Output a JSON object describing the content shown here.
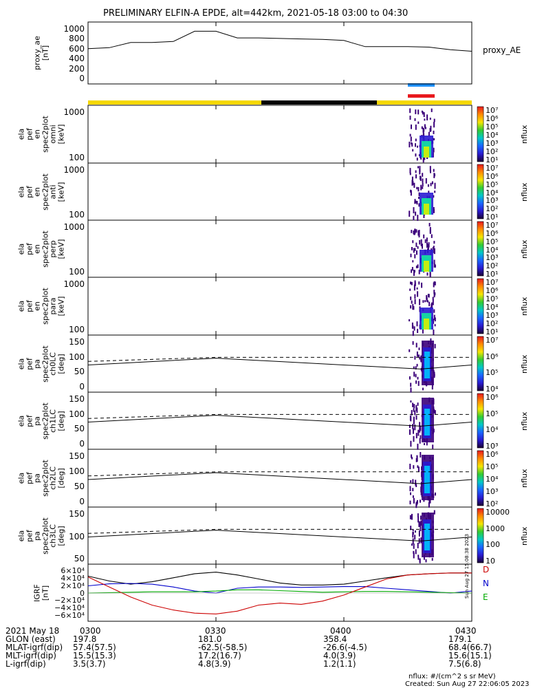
{
  "title": "PRELIMINARY ELFIN-A EPDE, alt=442km, 2021-05-18 03:00 to 04:30",
  "proxy_ae_legend": "proxy_AE",
  "colors": {
    "yellow": "#f5d800",
    "blue_bar": "#1e90ff",
    "red_bar": "#e8191e",
    "bx": "#0000cc",
    "by": "#00aa00",
    "bz": "#cc0000"
  },
  "time_ticks": [
    "0300",
    "0330",
    "0400",
    "0430"
  ],
  "panels": [
    {
      "id": "proxy_ae",
      "ylabel": [
        "proxy_ae",
        "[nT]"
      ],
      "yticks": [
        "1000",
        "800",
        "600",
        "400",
        "200",
        "0"
      ]
    },
    {
      "id": "en_omni",
      "ylabel": [
        "ela",
        "pef",
        "en",
        "spec2plot",
        "omni",
        "[keV]"
      ],
      "yticks": [
        "1000",
        "100"
      ],
      "cbar_ticks": [
        "10⁷",
        "10⁶",
        "10⁵",
        "10⁴",
        "10³",
        "10²",
        "10¹"
      ],
      "cbar_label": "nflux"
    },
    {
      "id": "en_anti",
      "ylabel": [
        "ela",
        "pef",
        "en",
        "spec2plot",
        "anti",
        "[keV]"
      ],
      "yticks": [
        "1000",
        "100"
      ],
      "cbar_ticks": [
        "10⁷",
        "10⁶",
        "10⁵",
        "10⁴",
        "10³",
        "10²",
        "10¹"
      ],
      "cbar_label": "nflux"
    },
    {
      "id": "en_perp",
      "ylabel": [
        "ela",
        "pef",
        "en",
        "spec2plot",
        "perp",
        "[keV]"
      ],
      "yticks": [
        "1000",
        "100"
      ],
      "cbar_ticks": [
        "10⁷",
        "10⁶",
        "10⁵",
        "10⁴",
        "10³",
        "10²",
        "10¹"
      ],
      "cbar_label": "nflux"
    },
    {
      "id": "en_para",
      "ylabel": [
        "ela",
        "pef",
        "en",
        "spec2plot",
        "para",
        "[keV]"
      ],
      "yticks": [
        "1000",
        "100"
      ],
      "cbar_ticks": [
        "10⁷",
        "10⁶",
        "10⁵",
        "10⁴",
        "10³",
        "10²",
        "10¹"
      ],
      "cbar_label": "nflux"
    },
    {
      "id": "pa_ch0",
      "ylabel": [
        "ela",
        "pef",
        "pa",
        "spec2plot",
        "ch0LC",
        "[deg]"
      ],
      "yticks": [
        "150",
        "100",
        "50",
        "0"
      ],
      "cbar_ticks": [
        "10⁷",
        "10⁶",
        "10⁵",
        "10⁴"
      ],
      "cbar_label": "nflux"
    },
    {
      "id": "pa_ch1",
      "ylabel": [
        "ela",
        "pef",
        "pa",
        "spec2plot",
        "ch1LC",
        "[deg]"
      ],
      "yticks": [
        "150",
        "100",
        "50",
        "0"
      ],
      "cbar_ticks": [
        "10⁶",
        "10⁵",
        "10⁴",
        "10³"
      ],
      "cbar_label": "nflux"
    },
    {
      "id": "pa_ch2",
      "ylabel": [
        "ela",
        "pef",
        "pa",
        "spec2plot",
        "ch2LC",
        "[deg]"
      ],
      "yticks": [
        "150",
        "100",
        "50",
        "0"
      ],
      "cbar_ticks": [
        "10⁶",
        "10⁵",
        "10⁴",
        "10³",
        "10²"
      ],
      "cbar_label": "nflux"
    },
    {
      "id": "pa_ch3",
      "ylabel": [
        "ela",
        "pef",
        "pa",
        "spec2plot",
        "ch3LC",
        "[deg]"
      ],
      "yticks": [
        "150",
        "100",
        "50"
      ],
      "cbar_ticks": [
        "10000",
        "1000",
        "100",
        "10"
      ],
      "cbar_label": "nflux"
    },
    {
      "id": "igrf",
      "ylabel": [
        "IGRF",
        "[nT]"
      ],
      "yticks": [
        "6×10⁴",
        "4×10⁴",
        "2×10⁴",
        "0",
        "−2×10⁴",
        "−4×10⁴",
        "−6×10⁴"
      ],
      "legend": [
        "D",
        "N",
        "E"
      ]
    }
  ],
  "chart_data": {
    "type": "line",
    "x_range": [
      "2021-05-18 03:00",
      "2021-05-18 04:30"
    ],
    "proxy_ae": {
      "x": [
        "03:00",
        "03:05",
        "03:10",
        "03:15",
        "03:20",
        "03:25",
        "03:30",
        "03:35",
        "03:40",
        "03:45",
        "03:50",
        "03:55",
        "04:00",
        "04:05",
        "04:10",
        "04:15",
        "04:20",
        "04:25",
        "04:30"
      ],
      "y": [
        580,
        600,
        700,
        700,
        720,
        920,
        920,
        790,
        790,
        780,
        770,
        760,
        740,
        620,
        620,
        620,
        610,
        560,
        530
      ],
      "ylim": [
        0,
        1100
      ]
    },
    "pa_loss_cone": {
      "x": [
        "03:00",
        "03:30",
        "04:18",
        "04:30"
      ],
      "solid": [
        85,
        110,
        70,
        85
      ],
      "dashed": [
        98,
        113,
        113,
        113
      ],
      "ylim": [
        0,
        180
      ]
    },
    "igrf": {
      "x": [
        "03:00",
        "03:05",
        "03:10",
        "03:15",
        "03:20",
        "03:25",
        "03:30",
        "03:35",
        "03:40",
        "03:45",
        "03:50",
        "03:55",
        "04:00",
        "04:05",
        "04:10",
        "04:15",
        "04:20",
        "04:25",
        "04:30"
      ],
      "total": [
        42000,
        30000,
        22000,
        28000,
        38000,
        48000,
        52000,
        45000,
        35000,
        25000,
        20000,
        20000,
        22000,
        30000,
        38000,
        45000,
        48000,
        50000,
        50000
      ],
      "north": [
        18000,
        23000,
        24000,
        22000,
        15000,
        5000,
        0,
        12000,
        15000,
        15000,
        14000,
        15000,
        16000,
        16000,
        12000,
        8000,
        4000,
        0,
        5000
      ],
      "east": [
        0,
        1000,
        2000,
        3000,
        3000,
        3000,
        5000,
        8000,
        8000,
        6000,
        4000,
        2000,
        3000,
        4000,
        4000,
        3000,
        2000,
        1000,
        0
      ],
      "down": [
        40000,
        15000,
        -10000,
        -30000,
        -42000,
        -50000,
        -52000,
        -45000,
        -30000,
        -25000,
        -28000,
        -20000,
        -5000,
        15000,
        35000,
        45000,
        48000,
        50000,
        50000
      ],
      "ylim": [
        -65000,
        65000
      ]
    },
    "ephemeris": {
      "labels": [
        "GLON (east)",
        "MLAT-igrf(dip)",
        "MLT-igrf(dip)",
        "L-igrf(dip)"
      ],
      "values": [
        [
          "197.8",
          "181.0",
          "358.4",
          "179.1"
        ],
        [
          "57.4(57.5)",
          "-62.5(-58.5)",
          "-26.6(-4.5)",
          "68.4(66.7)"
        ],
        [
          "15.5(15.3)",
          "17.2(16.7)",
          "4.0(3.9)",
          "15.6(15.1)"
        ],
        [
          "3.5(3.7)",
          "4.8(3.9)",
          "1.2(1.1)",
          "7.5(6.8)"
        ]
      ]
    }
  },
  "footer": {
    "date_label": "2021 May 18",
    "time_row": [
      "0300",
      "0330",
      "0400",
      "0430"
    ],
    "units": "nflux: #/(cm^2 s sr MeV)",
    "created": "Created: Sun Aug 27 22:06:05 2023",
    "side_stamp": "Sun Aug 27 15:08:38 2023"
  }
}
